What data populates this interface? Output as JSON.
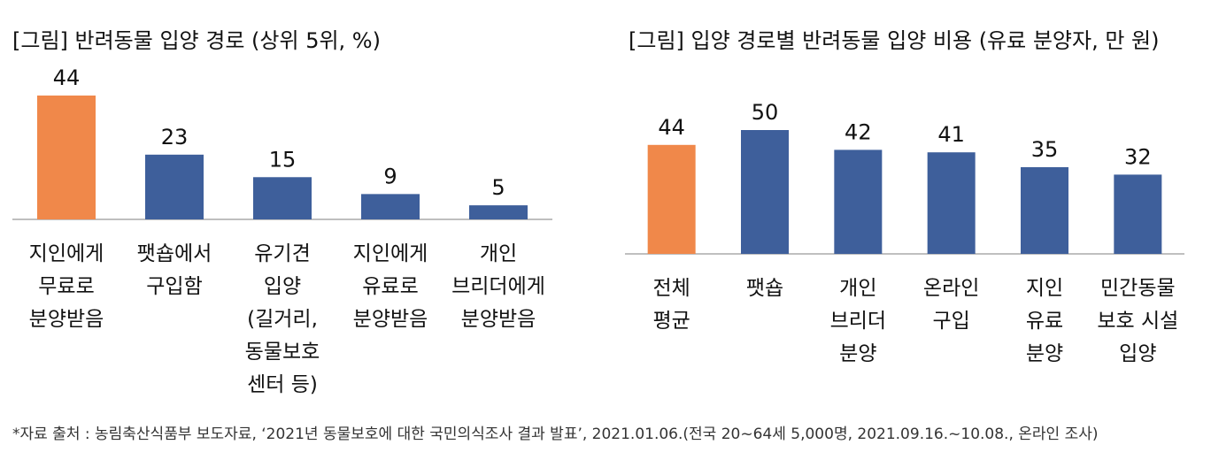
{
  "colors": {
    "highlight": "#F0884A",
    "bar": "#3E5F9B",
    "axis": "#BFBFBF"
  },
  "chart_data": [
    {
      "type": "bar",
      "title": "[그림] 반려동물 입양 경로 (상위 5위, %)",
      "categories": [
        [
          "지인에게",
          "무료로",
          "분양받음"
        ],
        [
          "팻숍에서",
          "구입함"
        ],
        [
          "유기견",
          "입양",
          "(길거리,",
          "동물보호",
          "센터 등)"
        ],
        [
          "지인에게",
          "유료로",
          "분양받음"
        ],
        [
          "개인",
          "브리더에게",
          "분양받음"
        ]
      ],
      "values": [
        44,
        23,
        15,
        9,
        5
      ],
      "data_labels": [
        "44",
        "23",
        "15",
        "9",
        "5"
      ],
      "highlight_index": 0,
      "ylim": [
        0,
        44
      ]
    },
    {
      "type": "bar",
      "title": "[그림] 입양 경로별 반려동물 입양 비용 (유료 분양자, 만 원)",
      "categories": [
        [
          "전체",
          "평균"
        ],
        [
          "팻숍"
        ],
        [
          "개인",
          "브리더",
          "분양"
        ],
        [
          "온라인",
          "구입"
        ],
        [
          "지인",
          "유료",
          "분양"
        ],
        [
          "민간동물",
          "보호 시설",
          "입양"
        ]
      ],
      "values": [
        44,
        50,
        42,
        41,
        35,
        32
      ],
      "data_labels": [
        "44",
        "50",
        "42",
        "41",
        "35",
        "32"
      ],
      "highlight_index": 0,
      "ylim": [
        0,
        50
      ]
    }
  ],
  "source": "*자료 출처 : 농림축산식품부 보도자료, ‘2021년 동물보호에 대한 국민의식조사 결과 발표’, 2021.01.06.(전국 20~64세 5,000명, 2021.09.16.~10.08., 온라인 조사)"
}
